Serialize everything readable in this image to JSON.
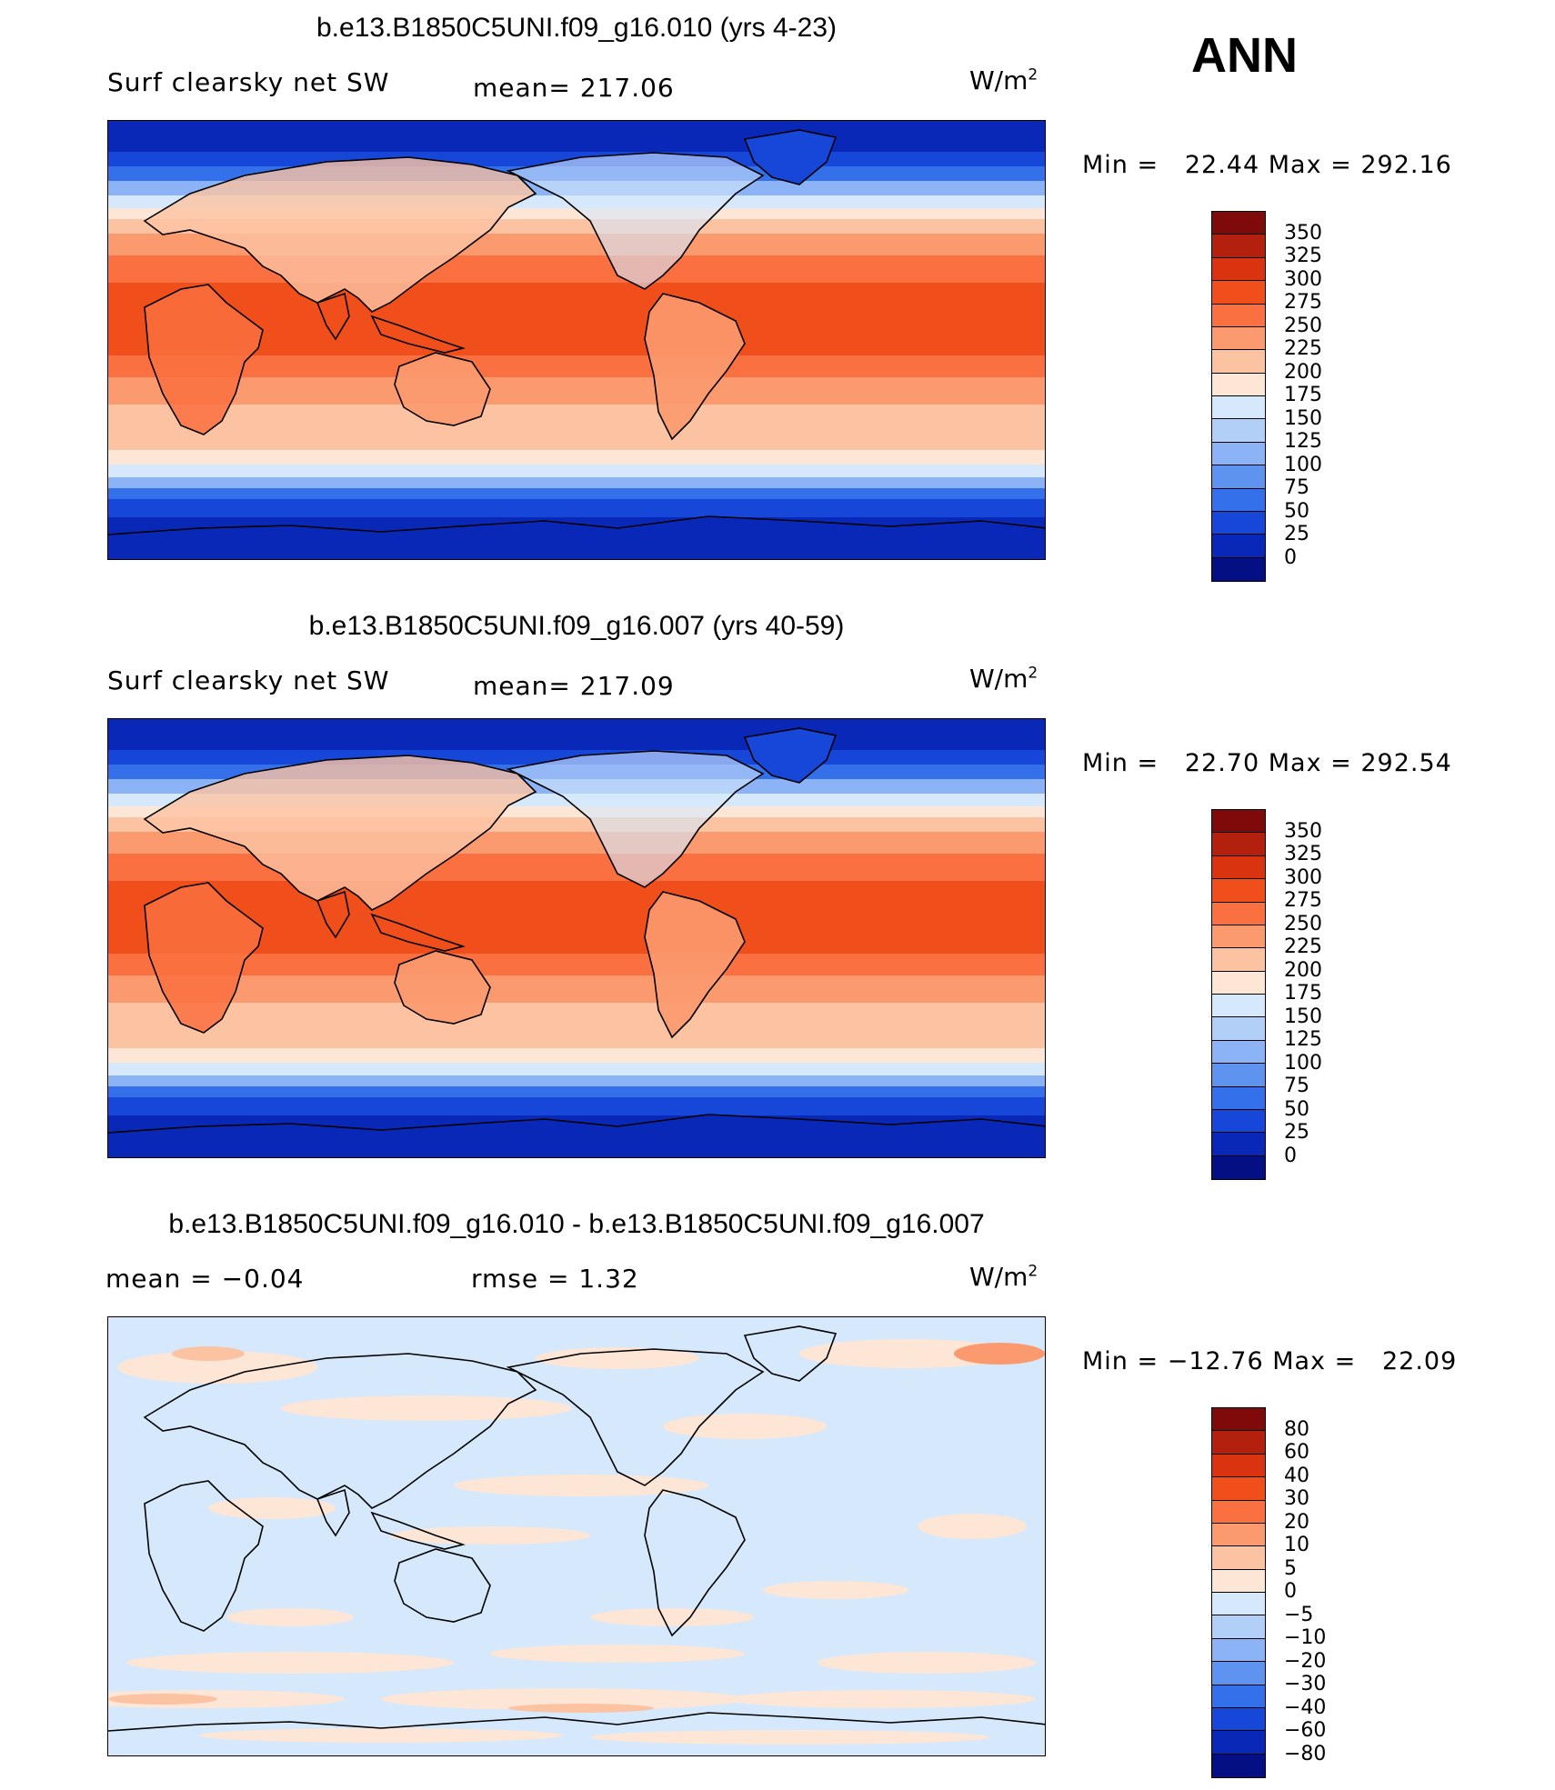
{
  "season": "ANN",
  "unit_prefix": "W/m",
  "unit_exp": "2",
  "panels": [
    {
      "title": "b.e13.B1850C5UNI.f09_g16.010 (yrs 4-23)",
      "left_label": "Surf clearsky net SW",
      "stat_label": "mean= 217.06",
      "minmax": "Min =   22.44 Max = 292.16",
      "colorbar": {
        "labels": [
          "350",
          "325",
          "300",
          "275",
          "250",
          "225",
          "200",
          "175",
          "150",
          "125",
          "100",
          "75",
          "50",
          "25",
          "0"
        ],
        "colors": [
          "#7f0a0a",
          "#b3200d",
          "#d9330f",
          "#f04e1a",
          "#fa7040",
          "#fb9a6f",
          "#fcc3a3",
          "#fde6d6",
          "#d6e8fb",
          "#b2cff8",
          "#8bb3f5",
          "#5f93f0",
          "#3470ea",
          "#1747d9",
          "#0a28b8",
          "#030f82"
        ]
      },
      "map_kind": "abs"
    },
    {
      "title": "b.e13.B1850C5UNI.f09_g16.007 (yrs 40-59)",
      "left_label": "Surf clearsky net SW",
      "stat_label": "mean= 217.09",
      "minmax": "Min =   22.70 Max = 292.54",
      "colorbar": {
        "labels": [
          "350",
          "325",
          "300",
          "275",
          "250",
          "225",
          "200",
          "175",
          "150",
          "125",
          "100",
          "75",
          "50",
          "25",
          "0"
        ],
        "colors": [
          "#7f0a0a",
          "#b3200d",
          "#d9330f",
          "#f04e1a",
          "#fa7040",
          "#fb9a6f",
          "#fcc3a3",
          "#fde6d6",
          "#d6e8fb",
          "#b2cff8",
          "#8bb3f5",
          "#5f93f0",
          "#3470ea",
          "#1747d9",
          "#0a28b8",
          "#030f82"
        ]
      },
      "map_kind": "abs"
    },
    {
      "title": "b.e13.B1850C5UNI.f09_g16.010 - b.e13.B1850C5UNI.f09_g16.007",
      "left_label": "mean =   −0.04",
      "stat_label": "rmse =    1.32",
      "minmax": "Min = −12.76 Max =   22.09",
      "colorbar": {
        "labels": [
          "80",
          "60",
          "40",
          "30",
          "20",
          "10",
          "5",
          "0",
          "−5",
          "−10",
          "−20",
          "−30",
          "−40",
          "−60",
          "−80"
        ],
        "colors": [
          "#7f0a0a",
          "#b3200d",
          "#d9330f",
          "#f04e1a",
          "#fa7040",
          "#fb9a6f",
          "#fcc3a3",
          "#fde6d6",
          "#d6e8fb",
          "#b2cff8",
          "#8bb3f5",
          "#5f93f0",
          "#3470ea",
          "#1747d9",
          "#0a28b8",
          "#030f82"
        ]
      },
      "map_kind": "diff"
    }
  ]
}
